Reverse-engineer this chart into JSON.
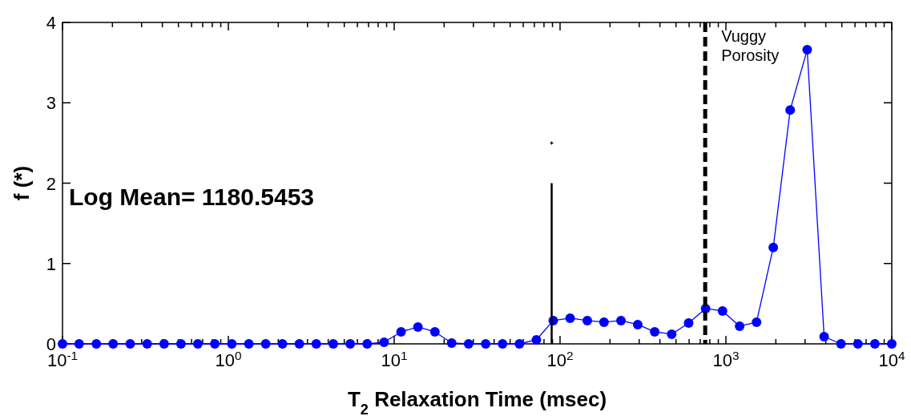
{
  "chart_data": {
    "type": "line",
    "xlabel": "T$_{2}$ Relaxation Time (msec)",
    "ylabel": "f (*)",
    "annotations": [
      "Log Mean= 1180.5453"
    ],
    "log": "x",
    "grid": false,
    "xlim": [
      0.1,
      10000
    ],
    "ylim": [
      0,
      4
    ],
    "yticks": [
      0,
      1,
      2,
      3,
      4
    ],
    "xticks": [
      {
        "value": 0.1,
        "label": "10$^{-1}$"
      },
      {
        "value": 0.2,
        "label": null
      },
      {
        "value": 0.3,
        "label": null
      },
      {
        "value": 0.4,
        "label": null
      },
      {
        "value": 0.5,
        "label": null
      },
      {
        "value": 0.6,
        "label": null
      },
      {
        "value": 0.7,
        "label": null
      },
      {
        "value": 0.8,
        "label": null
      },
      {
        "value": 0.9,
        "label": null
      },
      {
        "value": 1,
        "label": "10$^{0}$"
      },
      {
        "value": 2,
        "label": null
      },
      {
        "value": 3,
        "label": null
      },
      {
        "value": 4,
        "label": null
      },
      {
        "value": 5,
        "label": null
      },
      {
        "value": 6,
        "label": null
      },
      {
        "value": 7,
        "label": null
      },
      {
        "value": 8,
        "label": null
      },
      {
        "value": 9,
        "label": null
      },
      {
        "value": 10,
        "label": "10$^{1}$"
      },
      {
        "value": 20,
        "label": null
      },
      {
        "value": 30,
        "label": null
      },
      {
        "value": 40,
        "label": null
      },
      {
        "value": 50,
        "label": null
      },
      {
        "value": 60,
        "label": null
      },
      {
        "value": 70,
        "label": null
      },
      {
        "value": 80,
        "label": null
      },
      {
        "value": 90,
        "label": null
      },
      {
        "value": 100,
        "label": "10$^{2}$"
      },
      {
        "value": 200,
        "label": null
      },
      {
        "value": 300,
        "label": null
      },
      {
        "value": 400,
        "label": null
      },
      {
        "value": 500,
        "label": null
      },
      {
        "value": 600,
        "label": null
      },
      {
        "value": 700,
        "label": null
      },
      {
        "value": 800,
        "label": null
      },
      {
        "value": 900,
        "label": null
      },
      {
        "value": 1000,
        "label": "10$^{3}$"
      },
      {
        "value": 2000,
        "label": null
      },
      {
        "value": 3000,
        "label": null
      },
      {
        "value": 4000,
        "label": null
      },
      {
        "value": 5000,
        "label": null
      },
      {
        "value": 6000,
        "label": null
      },
      {
        "value": 7000,
        "label": null
      },
      {
        "value": 8000,
        "label": null
      },
      {
        "value": 9000,
        "label": null
      },
      {
        "value": 10000,
        "label": "10$^{4}$"
      }
    ],
    "ref_lines": [
      {
        "axis": "x",
        "value": 750,
        "label": "Vuggy Porosity",
        "color": "#000000",
        "line_style": "dashed"
      }
    ],
    "series": [
      {
        "color": "#0000ff",
        "marker": "circle",
        "line_style": "solid",
        "x": [
          0.1,
          0.126,
          0.16,
          0.202,
          0.256,
          0.324,
          0.41,
          0.518,
          0.655,
          0.829,
          1.05,
          1.33,
          1.68,
          2.12,
          2.68,
          3.39,
          4.29,
          5.43,
          6.87,
          8.69,
          11.0,
          13.9,
          17.6,
          22.2,
          28.1,
          35.6,
          45.0,
          56.9,
          72.0,
          91.0,
          115,
          146,
          184,
          233,
          294,
          372,
          471,
          596,
          754,
          954,
          1210,
          1530,
          1930,
          2440,
          3090,
          3910,
          4940,
          6250,
          7910,
          10000
        ],
        "values": [
          0,
          0,
          0,
          0,
          0,
          0,
          0,
          0,
          0,
          0,
          0,
          0,
          0,
          0,
          0,
          0,
          0,
          0,
          0,
          0.02,
          0.15,
          0.21,
          0.15,
          0.01,
          0,
          0,
          0,
          0,
          0.05,
          0.29,
          0.32,
          0.29,
          0.27,
          0.29,
          0.24,
          0.15,
          0.12,
          0.26,
          0.44,
          0.41,
          0.22,
          0.27,
          1.2,
          2.91,
          3.66,
          0.09,
          0,
          0,
          0,
          0
        ]
      },
      {
        "type": "line",
        "color": "#000000",
        "marker": "none",
        "line_style": "solid",
        "x": [
          89,
          89
        ],
        "values": [
          0,
          2
        ]
      },
      {
        "type": "scatter",
        "color": "#000000",
        "marker": "cross",
        "x": [
          89
        ],
        "values": [
          2.5
        ]
      }
    ]
  }
}
